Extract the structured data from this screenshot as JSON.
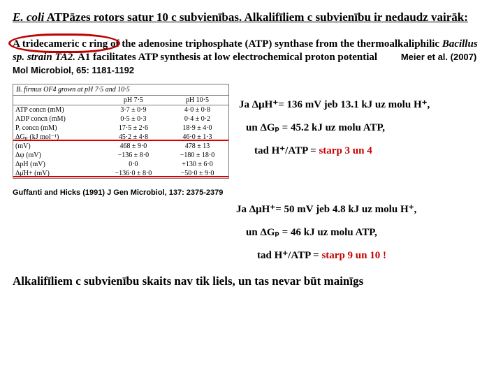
{
  "title": {
    "prefix_italic": "E. coli",
    "rest": " ATPāzes rotors satur 10 c subvienības. Alkalifīliem c subvienību ir nedaudz vairāk:"
  },
  "para": {
    "text1": "A tridecameric c ring of the adenosine triphosphate (ATP) synthase from the thermoalkaliphilic ",
    "italic": "Bacillus sp. strain TA2.",
    "text2": " A1 facilitates ATP synthesis at low electrochemical proton potential",
    "cite": "Meier et al. (2007) Mol Microbiol, 65: 1181-1192"
  },
  "table": {
    "caption": "B. firmus OF4 grown at pH 7·5 and 10·5",
    "headers": [
      "",
      "pH 7·5",
      "pH 10·5"
    ],
    "rows": [
      {
        "label": "ATP concn (mM)",
        "v1": "3·7 ± 0·9",
        "v2": "4·0 ± 0·8"
      },
      {
        "label": "ADP concn (mM)",
        "v1": "0·5 ± 0·3",
        "v2": "0·4 ± 0·2"
      },
      {
        "label": "Pᵢ concn (mM)",
        "v1": "17·5 ± 2·6",
        "v2": "18·9 ± 4·0"
      },
      {
        "label": "ΔGₚ (kJ mol⁻¹)",
        "v1": "45·2 ± 4·8",
        "v2": "46·0 ± 1·3",
        "red": true
      },
      {
        "label": "(mV)",
        "v1": "468 ± 9·0",
        "v2": "478 ± 13"
      },
      {
        "label": "Δψ (mV)",
        "v1": "−136 ± 8·0",
        "v2": "−180 ± 18·0"
      },
      {
        "label": "ΔpH (mV)",
        "v1": "0·0",
        "v2": "+130 ± 6·0"
      },
      {
        "label": "Δμ̄H+ (mV)",
        "v1": "−136·0 ± 8·0",
        "v2": "−50·0 ± 9·0",
        "red": true
      }
    ],
    "cite": "Guffanti and Hicks (1991) J Gen Microbiol, 137: 2375-2379"
  },
  "formulas": {
    "f1_lead": "Ja ",
    "f1_mid": "ΔμH⁺= 136 mV jeb 13.1 kJ uz molu H⁺,",
    "f2_lead": "un ",
    "f2_mid": "ΔGₚ = 45.2 kJ uz molu ATP,",
    "f3_lead": "tad ",
    "f3_mid": "H⁺/ATP = ",
    "f3_res": "starp 3 un 4",
    "f4_lead": "Ja ",
    "f4_mid": "ΔμH⁺= 50 mV jeb 4.8 kJ uz molu H⁺,",
    "f5_lead": "un ",
    "f5_mid": "ΔGₚ = 46 kJ uz molu ATP,",
    "f6_lead": "tad ",
    "f6_mid": "H⁺/ATP = ",
    "f6_res": "starp 9 un 10 !"
  },
  "conclusion": "Alkalifīliem c subvienību skaits nav tik liels, un tas nevar būt mainīgs"
}
